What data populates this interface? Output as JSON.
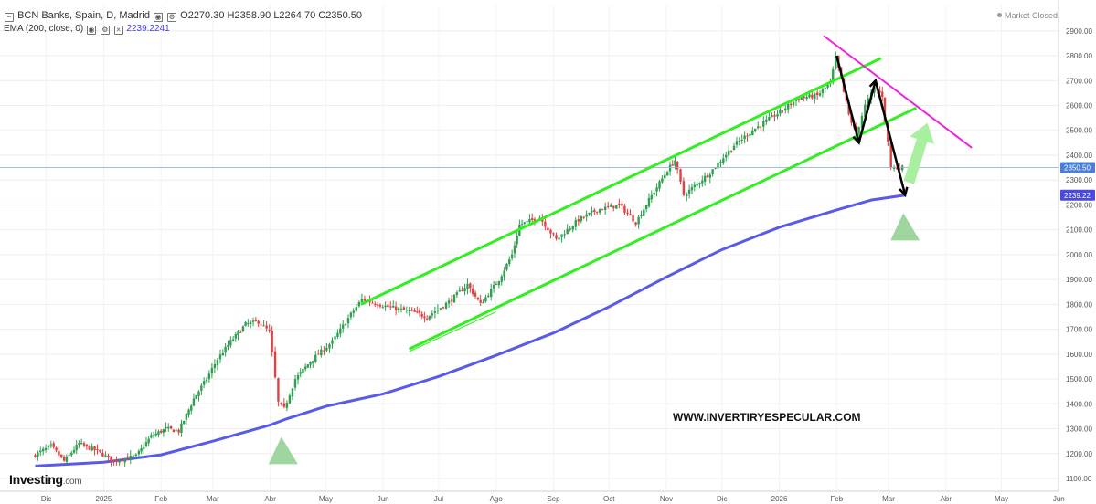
{
  "header": {
    "instrument": "BCN Banks, Spain, D, Madrid",
    "open": "O2270.30",
    "high": "H2358.90",
    "low": "L2264.70",
    "close": "C2350.50",
    "indicator": "EMA (200, close, 0)",
    "indicator_value": "2239.2241"
  },
  "status": "Market Closed",
  "logo": {
    "main": "Investing",
    "suffix": ".com"
  },
  "watermark": "WWW.INVERTIRYESPECULAR.COM",
  "colors": {
    "up": "#2e9e4f",
    "down": "#e04141",
    "ema": "#5a5ae8",
    "channel": "#33ee22",
    "resistance": "#ee22dd",
    "arrow_up": "#a8f0a0",
    "triangle": "#9fd69f",
    "zigzag": "#000000",
    "price_line": "#9ab0e0"
  },
  "chart_data": {
    "type": "candlestick",
    "y_axis": {
      "min": 1060,
      "max": 2960,
      "ticks": [
        1100,
        1200,
        1300,
        1400,
        1500,
        1600,
        1700,
        1800,
        1900,
        2000,
        2100,
        2200,
        2300,
        2400,
        2500,
        2600,
        2700,
        2800,
        2900
      ]
    },
    "x_axis": {
      "labels": [
        "Dic",
        "2025",
        "Feb",
        "Mar",
        "Abr",
        "May",
        "Jun",
        "Jul",
        "Ago",
        "Sep",
        "Oct",
        "Nov",
        "Dic",
        "2026",
        "Feb",
        "Mar",
        "Abr",
        "May",
        "Jun"
      ]
    },
    "last_price_label": "2350.50",
    "ema_label": "2239.22",
    "last_price": 2350.5,
    "anchors": [
      [
        "2024-11-25",
        1190
      ],
      [
        "2024-12-05",
        1230
      ],
      [
        "2024-12-12",
        1170
      ],
      [
        "2024-12-20",
        1240
      ],
      [
        "2024-12-30",
        1210
      ],
      [
        "2025-01-08",
        1170
      ],
      [
        "2025-01-20",
        1190
      ],
      [
        "2025-01-28",
        1270
      ],
      [
        "2025-02-05",
        1300
      ],
      [
        "2025-02-12",
        1290
      ],
      [
        "2025-02-20",
        1420
      ],
      [
        "2025-02-27",
        1500
      ],
      [
        "2025-03-05",
        1580
      ],
      [
        "2025-03-12",
        1650
      ],
      [
        "2025-03-20",
        1720
      ],
      [
        "2025-03-27",
        1730
      ],
      [
        "2025-04-02",
        1690
      ],
      [
        "2025-04-07",
        1400
      ],
      [
        "2025-04-10",
        1380
      ],
      [
        "2025-04-16",
        1500
      ],
      [
        "2025-04-24",
        1570
      ],
      [
        "2025-05-06",
        1650
      ],
      [
        "2025-05-16",
        1760
      ],
      [
        "2025-05-22",
        1820
      ],
      [
        "2025-06-05",
        1790
      ],
      [
        "2025-06-18",
        1770
      ],
      [
        "2025-06-26",
        1750
      ],
      [
        "2025-07-08",
        1810
      ],
      [
        "2025-07-18",
        1880
      ],
      [
        "2025-07-25",
        1800
      ],
      [
        "2025-08-04",
        1900
      ],
      [
        "2025-08-11",
        2000
      ],
      [
        "2025-08-15",
        2120
      ],
      [
        "2025-08-26",
        2150
      ],
      [
        "2025-09-04",
        2060
      ],
      [
        "2025-09-16",
        2140
      ],
      [
        "2025-09-26",
        2180
      ],
      [
        "2025-10-08",
        2200
      ],
      [
        "2025-10-17",
        2130
      ],
      [
        "2025-10-24",
        2220
      ],
      [
        "2025-11-03",
        2340
      ],
      [
        "2025-11-07",
        2380
      ],
      [
        "2025-11-12",
        2240
      ],
      [
        "2025-11-26",
        2330
      ],
      [
        "2025-12-09",
        2440
      ],
      [
        "2025-12-19",
        2500
      ],
      [
        "2025-12-31",
        2560
      ],
      [
        "2026-01-13",
        2630
      ],
      [
        "2026-01-23",
        2640
      ],
      [
        "2026-01-30",
        2690
      ],
      [
        "2026-02-02",
        2790
      ],
      [
        "2026-02-09",
        2560
      ],
      [
        "2026-02-13",
        2480
      ],
      [
        "2026-02-18",
        2600
      ],
      [
        "2026-02-23",
        2670
      ],
      [
        "2026-02-27",
        2640
      ],
      [
        "2026-03-04",
        2350
      ],
      [
        "2026-03-10",
        2350
      ]
    ],
    "ema200": [
      [
        "2024-11-25",
        1150
      ],
      [
        "2025-01-01",
        1165
      ],
      [
        "2025-02-01",
        1195
      ],
      [
        "2025-03-01",
        1250
      ],
      [
        "2025-04-01",
        1315
      ],
      [
        "2025-04-10",
        1340
      ],
      [
        "2025-05-01",
        1390
      ],
      [
        "2025-06-01",
        1440
      ],
      [
        "2025-07-01",
        1510
      ],
      [
        "2025-08-01",
        1595
      ],
      [
        "2025-09-01",
        1685
      ],
      [
        "2025-10-01",
        1790
      ],
      [
        "2025-11-01",
        1910
      ],
      [
        "2025-12-01",
        2020
      ],
      [
        "2026-01-01",
        2110
      ],
      [
        "2026-02-01",
        2180
      ],
      [
        "2026-02-20",
        2220
      ],
      [
        "2026-03-10",
        2239.22
      ]
    ],
    "channel_upper": [
      [
        "2025-05-20",
        1800
      ],
      [
        "2026-02-25",
        2790
      ]
    ],
    "channel_lower": [
      [
        "2025-06-15",
        1620
      ],
      [
        "2026-03-16",
        2590
      ]
    ],
    "channel_lower_thin": [
      [
        "2025-06-15",
        1610
      ],
      [
        "2025-08-01",
        1770
      ]
    ],
    "resistance": [
      [
        "2026-01-25",
        2880
      ],
      [
        "2026-04-15",
        2430
      ]
    ],
    "zigzag": [
      [
        "2026-02-01",
        2800
      ],
      [
        "2026-02-13",
        2450
      ],
      [
        "2026-02-22",
        2700
      ],
      [
        "2026-03-10",
        2240
      ]
    ],
    "green_arrow": {
      "from": [
        "2026-03-12",
        2290
      ],
      "to": [
        "2026-03-22",
        2530
      ]
    },
    "triangles": [
      [
        "2025-04-07",
        1260
      ],
      [
        "2026-03-09",
        2160
      ]
    ]
  }
}
